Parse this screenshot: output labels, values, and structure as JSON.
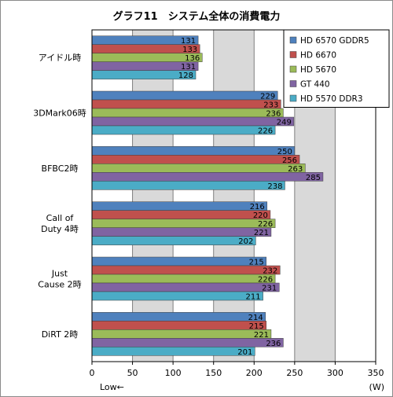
{
  "chart_data": {
    "type": "bar",
    "orientation": "horizontal",
    "title": "グラフ11　システム全体の消費電力",
    "categories": [
      [
        "アイドル時"
      ],
      [
        "3DMark06時"
      ],
      [
        "BFBC2時"
      ],
      [
        "Call of",
        "Duty 4時"
      ],
      [
        "Just",
        "Cause 2時"
      ],
      [
        "DiRT 2時"
      ]
    ],
    "series": [
      {
        "name": "HD 6570 GDDR5",
        "color": "#4f81bd",
        "values": [
          131,
          229,
          250,
          216,
          215,
          214
        ]
      },
      {
        "name": "HD 6670",
        "color": "#c0504d",
        "values": [
          133,
          233,
          256,
          220,
          232,
          215
        ]
      },
      {
        "name": "HD 5670",
        "color": "#9bbb59",
        "values": [
          136,
          236,
          263,
          226,
          226,
          221
        ]
      },
      {
        "name": "GT 440",
        "color": "#8064a2",
        "values": [
          131,
          249,
          285,
          221,
          231,
          236
        ]
      },
      {
        "name": "HD 5570 DDR3",
        "color": "#4bacc6",
        "values": [
          128,
          226,
          238,
          202,
          211,
          201
        ]
      }
    ],
    "xlim": [
      0,
      350
    ],
    "xticks": [
      0,
      50,
      100,
      150,
      200,
      250,
      300,
      350
    ],
    "xunit": "(W)",
    "x_note": "Low←",
    "grid": true,
    "legend_position": "top-right"
  }
}
